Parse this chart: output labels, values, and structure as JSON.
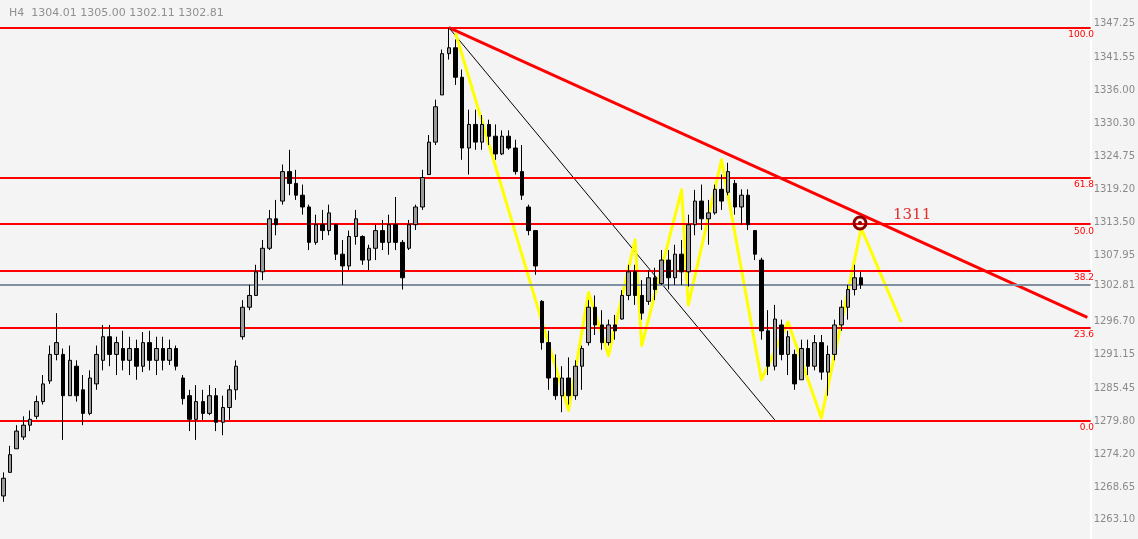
{
  "chart_data": {
    "type": "candlestick",
    "subtitle": "H4  1304.01 1305.00 1302.11 1302.81",
    "categories": [
      null,
      null,
      null,
      null,
      null,
      null,
      null,
      null,
      null,
      null,
      null,
      null,
      null,
      null,
      null,
      null,
      null,
      null,
      null,
      null,
      null,
      null,
      null,
      null,
      null,
      null,
      null,
      null,
      null,
      null,
      null,
      null,
      null,
      null,
      null,
      null,
      null,
      null,
      null,
      null,
      null,
      null,
      null,
      null,
      null,
      null,
      null,
      null,
      null,
      null,
      null,
      null,
      null,
      null,
      null,
      null,
      null,
      null,
      null,
      null,
      null,
      null,
      null,
      null,
      null,
      null,
      null,
      null,
      null,
      null,
      null,
      null,
      null,
      null,
      null,
      null,
      null,
      null,
      null,
      null,
      null,
      null,
      null,
      null,
      null,
      null,
      null,
      null,
      null,
      null,
      null,
      null,
      null,
      null,
      null,
      null,
      null,
      null,
      null,
      null,
      null,
      null,
      null,
      null,
      null,
      null,
      null,
      null,
      null,
      null,
      null,
      null,
      null,
      null,
      null,
      null,
      null,
      null,
      null,
      null,
      null,
      null,
      null,
      null,
      null,
      null,
      null,
      null,
      null,
      null,
      null,
      null,
      null,
      null,
      null,
      null,
      null,
      null,
      null,
      null,
      null,
      null,
      null,
      null,
      null,
      null,
      null,
      null,
      null,
      null,
      null,
      null,
      null,
      null,
      null,
      null,
      null,
      null,
      null,
      null,
      null,
      null,
      null,
      null
    ],
    "tick_labels": "y",
    "ylim": [
      1259.7,
      1351.1
    ],
    "yticks": [
      1347.25,
      1341.55,
      {
        "value": 1336,
        "label": "1336.00"
      },
      {
        "value": 1330.3,
        "label": "1330.30"
      },
      1324.75,
      {
        "value": 1319.2,
        "label": "1319.20"
      },
      {
        "value": 1313.5,
        "label": "1313.50"
      },
      1307.95,
      1302.81,
      {
        "value": 1296.7,
        "label": "1296.70"
      },
      1291.15,
      1285.45,
      {
        "value": 1279.8,
        "label": "1279.80"
      },
      {
        "value": 1274.2,
        "label": "1274.20"
      },
      1268.65,
      {
        "value": 1263.1,
        "label": "1263.10"
      }
    ],
    "grid": false,
    "series": [
      {
        "type": "candlestick",
        "color": "#000000",
        "ohlc": [
          [
            1267,
            1271,
            1266,
            1270
          ],
          [
            1271,
            1275.5,
            1271,
            1274
          ],
          [
            1275,
            1279,
            1275,
            1278
          ],
          [
            1277,
            1280.5,
            1276.5,
            1279
          ],
          [
            1279,
            1281.5,
            1278,
            1280
          ],
          [
            1280.5,
            1284,
            1280,
            1283
          ],
          [
            1283,
            1287.5,
            1282.5,
            1286
          ],
          [
            1286.5,
            1292.5,
            1286,
            1291
          ],
          [
            1291,
            1298,
            1290,
            1293
          ],
          [
            1291,
            1292,
            1276.5,
            1284
          ],
          [
            1284,
            1292.5,
            1284,
            1290
          ],
          [
            1289,
            1290,
            1283,
            1284
          ],
          [
            1285,
            1287.5,
            1279,
            1281
          ],
          [
            1281,
            1288.3,
            1280.7,
            1287
          ],
          [
            1286,
            1292.5,
            1285,
            1291
          ],
          [
            1290,
            1296,
            1288.3,
            1294
          ],
          [
            1294,
            1296,
            1289,
            1291
          ],
          [
            1291,
            1294,
            1287.5,
            1293
          ],
          [
            1292,
            1295,
            1288.3,
            1290
          ],
          [
            1290,
            1294,
            1287.5,
            1292
          ],
          [
            1292,
            1293.5,
            1286.7,
            1289
          ],
          [
            1289,
            1294.8,
            1288,
            1293
          ],
          [
            1293,
            1295,
            1288.3,
            1290
          ],
          [
            1290,
            1294,
            1287.5,
            1292
          ],
          [
            1292,
            1294,
            1288.3,
            1290
          ],
          [
            1290,
            1293.5,
            1289.2,
            1292
          ],
          [
            1292,
            1292.5,
            1288.3,
            1289
          ],
          [
            1287,
            1287.5,
            1282.5,
            1283.5
          ],
          [
            1284,
            1285,
            1278,
            1280
          ],
          [
            1280,
            1285.8,
            1276.5,
            1283
          ],
          [
            1283,
            1285,
            1279.9,
            1281
          ],
          [
            1281,
            1285.8,
            1280.7,
            1284
          ],
          [
            1284,
            1285.3,
            1278,
            1279.5
          ],
          [
            1279.5,
            1284,
            1277.3,
            1282
          ],
          [
            1282,
            1285.8,
            1279.9,
            1285
          ],
          [
            1285,
            1290,
            1283.3,
            1289
          ],
          [
            1294,
            1300.2,
            1293.5,
            1299
          ],
          [
            1299,
            1302.8,
            1298.5,
            1301
          ],
          [
            1301,
            1306.2,
            1301,
            1305
          ],
          [
            1305,
            1310.4,
            1303.6,
            1309
          ],
          [
            1309,
            1315.5,
            1308.7,
            1314
          ],
          [
            1314,
            1317.2,
            1311.2,
            1313
          ],
          [
            1317,
            1323.2,
            1316.4,
            1322
          ],
          [
            1322,
            1325.7,
            1318,
            1320
          ],
          [
            1320,
            1322.3,
            1317.2,
            1318
          ],
          [
            1318,
            1319.8,
            1314.7,
            1316
          ],
          [
            1316,
            1316.4,
            1308.7,
            1310
          ],
          [
            1310,
            1314.7,
            1309.6,
            1313
          ],
          [
            1313,
            1315.5,
            1310.4,
            1312
          ],
          [
            1312,
            1316.4,
            1311.2,
            1315
          ],
          [
            1313,
            1313,
            1307,
            1308
          ],
          [
            1308,
            1310.4,
            1302.8,
            1306
          ],
          [
            1306,
            1312,
            1305.3,
            1311
          ],
          [
            1311,
            1315.5,
            1309.6,
            1314
          ],
          [
            1311,
            1311.2,
            1306.2,
            1307
          ],
          [
            1307,
            1309.6,
            1305.3,
            1309
          ],
          [
            1309,
            1313,
            1307,
            1312
          ],
          [
            1312,
            1313.8,
            1308.7,
            1310
          ],
          [
            1310,
            1314.7,
            1307.9,
            1313
          ],
          [
            1313,
            1317.7,
            1308.7,
            1310
          ],
          [
            1310,
            1310.4,
            1302,
            1304
          ],
          [
            1309,
            1313.8,
            1308.7,
            1313
          ],
          [
            1313,
            1316.4,
            1312.1,
            1316
          ],
          [
            1316,
            1322.3,
            1315.5,
            1321
          ],
          [
            1321.5,
            1328.2,
            1321.5,
            1327
          ],
          [
            1327,
            1334.2,
            1326.5,
            1333
          ],
          [
            1335,
            1342.7,
            1335,
            1342
          ],
          [
            1342,
            1346.4,
            1341,
            1343
          ],
          [
            1343,
            1344.4,
            1336.7,
            1338
          ],
          [
            1338,
            1339.3,
            1324,
            1326
          ],
          [
            1326,
            1332.5,
            1321.5,
            1330
          ],
          [
            1330,
            1332.5,
            1325.7,
            1327
          ],
          [
            1327,
            1331.6,
            1325.7,
            1330
          ],
          [
            1330,
            1330.8,
            1326.5,
            1328
          ],
          [
            1328,
            1330,
            1324,
            1325
          ],
          [
            1325,
            1329,
            1324.8,
            1328
          ],
          [
            1328,
            1329,
            1325.7,
            1326
          ],
          [
            1326,
            1327.4,
            1321.5,
            1322
          ],
          [
            1322,
            1326.5,
            1317.2,
            1318
          ],
          [
            1316,
            1316.4,
            1311.2,
            1312
          ],
          [
            1312,
            1312,
            1304.5,
            1306
          ],
          [
            1300,
            1300.2,
            1291.8,
            1293
          ],
          [
            1293,
            1295,
            1285,
            1287
          ],
          [
            1287,
            1291,
            1283.3,
            1284
          ],
          [
            1284,
            1289,
            1281.2,
            1287
          ],
          [
            1287,
            1290.5,
            1282.5,
            1284
          ],
          [
            1284,
            1290,
            1283.3,
            1289
          ],
          [
            1289,
            1292.5,
            1285,
            1292
          ],
          [
            1293,
            1300.2,
            1292.5,
            1299
          ],
          [
            1299,
            1301,
            1294.3,
            1296
          ],
          [
            1296,
            1298.5,
            1291.8,
            1293
          ],
          [
            1293,
            1296.9,
            1292.5,
            1296
          ],
          [
            1296,
            1297.7,
            1293.5,
            1295
          ],
          [
            1297,
            1301.9,
            1296.9,
            1301
          ],
          [
            1301,
            1306.2,
            1300.2,
            1305
          ],
          [
            1305,
            1306.2,
            1299.4,
            1301
          ],
          [
            1301,
            1303.6,
            1296.9,
            1298
          ],
          [
            1300,
            1305.3,
            1299.4,
            1304
          ],
          [
            1304,
            1305.7,
            1300.2,
            1302
          ],
          [
            1303,
            1308.7,
            1302.8,
            1307
          ],
          [
            1307,
            1308.7,
            1302,
            1304
          ],
          [
            1304,
            1309.6,
            1302.8,
            1308
          ],
          [
            1308,
            1310.4,
            1302.8,
            1305
          ],
          [
            1305,
            1314.7,
            1302.5,
            1313
          ],
          [
            1313,
            1318.9,
            1311.2,
            1317
          ],
          [
            1317,
            1319.8,
            1312.1,
            1314
          ],
          [
            1314,
            1317.2,
            1309.6,
            1315
          ],
          [
            1315,
            1319.8,
            1314.7,
            1319
          ],
          [
            1319,
            1321.5,
            1315.5,
            1317
          ],
          [
            1318.5,
            1323.5,
            1318,
            1322
          ],
          [
            1320,
            1320.6,
            1314.7,
            1316
          ],
          [
            1316,
            1319,
            1313,
            1318
          ],
          [
            1318,
            1319,
            1312.1,
            1313
          ],
          [
            1312,
            1312,
            1307,
            1308
          ],
          [
            1307,
            1307.4,
            1293.5,
            1295
          ],
          [
            1295,
            1298.5,
            1287.5,
            1289
          ],
          [
            1289,
            1299.4,
            1288.3,
            1297
          ],
          [
            1296,
            1296.9,
            1290,
            1291
          ],
          [
            1291,
            1295,
            1287.5,
            1294
          ],
          [
            1291,
            1291.8,
            1285,
            1286
          ],
          [
            1286.7,
            1293.5,
            1286.7,
            1292
          ],
          [
            1292,
            1293.5,
            1287.5,
            1289
          ],
          [
            1289,
            1294.3,
            1288.3,
            1293
          ],
          [
            1293,
            1294.3,
            1286.7,
            1288
          ],
          [
            1288,
            1292.5,
            1284,
            1291
          ],
          [
            1291,
            1296.9,
            1290,
            1296
          ],
          [
            1296,
            1300.2,
            1295,
            1299
          ],
          [
            1299,
            1302.8,
            1296.9,
            1302
          ],
          [
            1302,
            1306.2,
            1301,
            1304
          ],
          [
            1304.01,
            1305,
            1302.11,
            1302.81
          ],
          null,
          null,
          null,
          null,
          null,
          null,
          null,
          null,
          null,
          null,
          null,
          null,
          null,
          null,
          null,
          null,
          null,
          null,
          null,
          null,
          null,
          null,
          null,
          null,
          null,
          null,
          null,
          null,
          null,
          null,
          null,
          null,
          null,
          null
        ]
      },
      {
        "type": "line",
        "color": "#ff0000",
        "values": [
          null,
          null,
          null,
          null,
          null,
          null,
          null,
          null,
          null,
          null,
          null,
          null,
          null,
          null,
          null,
          null,
          null,
          null,
          null,
          null,
          null,
          null,
          null,
          null,
          null,
          null,
          null,
          null,
          null,
          null,
          null,
          null,
          null,
          null,
          null,
          null,
          null,
          null,
          null,
          null,
          null,
          null,
          null,
          null,
          null,
          null,
          null,
          null,
          null,
          null,
          null,
          null,
          null,
          null,
          null,
          null,
          null,
          null,
          null,
          null,
          null,
          null,
          null,
          null,
          null,
          null,
          null,
          1346.4,
          null,
          null,
          null,
          null,
          null,
          null,
          null,
          null,
          null,
          null,
          null,
          null,
          null,
          null,
          null,
          null,
          null,
          null,
          null,
          null,
          null,
          null,
          null,
          null,
          null,
          null,
          null,
          null,
          null,
          null,
          null,
          null,
          null,
          null,
          null,
          null,
          null,
          null,
          null,
          null,
          null,
          null,
          null,
          null,
          null,
          null,
          null,
          null,
          null,
          null,
          null,
          null,
          null,
          null,
          null,
          null,
          null,
          null,
          null,
          null,
          null,
          null,
          null,
          null,
          null,
          null,
          null,
          null,
          null,
          null,
          null,
          null,
          null,
          null,
          null,
          null,
          null,
          null,
          null,
          null,
          null,
          null,
          null,
          null,
          null,
          null,
          null,
          null,
          null,
          null,
          null,
          null,
          null,
          null,
          null,
          1297.3
        ]
      },
      {
        "type": "line",
        "color": "#000000",
        "values": [
          null,
          null,
          null,
          null,
          null,
          null,
          null,
          null,
          null,
          null,
          null,
          null,
          null,
          null,
          null,
          null,
          null,
          null,
          null,
          null,
          null,
          null,
          null,
          null,
          null,
          null,
          null,
          null,
          null,
          null,
          null,
          null,
          null,
          null,
          null,
          null,
          null,
          null,
          null,
          null,
          null,
          null,
          null,
          null,
          null,
          null,
          null,
          null,
          null,
          null,
          null,
          null,
          null,
          null,
          null,
          null,
          null,
          null,
          null,
          null,
          null,
          null,
          null,
          null,
          null,
          null,
          null,
          1346.4,
          null,
          null,
          null,
          null,
          null,
          null,
          null,
          null,
          null,
          null,
          null,
          null,
          null,
          null,
          null,
          null,
          null,
          null,
          null,
          null,
          null,
          null,
          null,
          null,
          null,
          null,
          null,
          null,
          null,
          null,
          null,
          null,
          null,
          null,
          null,
          null,
          null,
          null,
          null,
          null,
          null,
          null,
          null,
          null,
          null,
          null,
          null,
          null,
          1279.9,
          null,
          null,
          null,
          null,
          null,
          null,
          null,
          null,
          null,
          null,
          null,
          null,
          null,
          null,
          null,
          null,
          null,
          null,
          null,
          null,
          null,
          null,
          null,
          null,
          null,
          null,
          null,
          null,
          null,
          null,
          null,
          null,
          null,
          null,
          null,
          null,
          null,
          null,
          null,
          null,
          null,
          null,
          null,
          null,
          null,
          null,
          null
        ]
      },
      {
        "type": "line",
        "color": "#ffff00",
        "values": [
          null,
          null,
          null,
          null,
          null,
          null,
          null,
          null,
          null,
          null,
          null,
          null,
          null,
          null,
          null,
          null,
          null,
          null,
          null,
          null,
          null,
          null,
          null,
          null,
          null,
          null,
          null,
          null,
          null,
          null,
          null,
          null,
          null,
          null,
          null,
          null,
          null,
          null,
          null,
          null,
          null,
          null,
          null,
          null,
          null,
          null,
          null,
          null,
          null,
          null,
          null,
          null,
          null,
          null,
          null,
          null,
          null,
          null,
          null,
          null,
          null,
          null,
          null,
          null,
          null,
          null,
          null,
          null,
          1345.5,
          null,
          null,
          null,
          null,
          null,
          null,
          null,
          null,
          null,
          null,
          null,
          null,
          null,
          null,
          null,
          null,
          1281.5,
          null,
          null,
          1301.5,
          null,
          null,
          1290.8,
          null,
          null,
          null,
          1310.4,
          1292.5,
          null,
          null,
          null,
          null,
          null,
          1318.9,
          1299.4,
          null,
          null,
          null,
          null,
          1324,
          null,
          null,
          null,
          null,
          null,
          1286.7,
          null,
          null,
          null,
          1296.5,
          null,
          null,
          null,
          null,
          1280.2,
          null,
          null,
          null,
          null,
          null,
          1312.4,
          null,
          null,
          null,
          null,
          null,
          1296.5,
          null,
          null,
          null,
          null,
          null,
          null,
          null,
          null,
          null,
          null,
          null,
          null,
          null,
          null,
          null,
          null,
          null,
          null,
          null,
          null,
          null,
          null,
          null,
          null,
          null,
          null,
          null,
          null
        ]
      }
    ],
    "ref_lines": [
      {
        "axis": "y",
        "value": 1346.4,
        "color": "#ff0000"
      },
      {
        "axis": "y",
        "value": 1320.96,
        "color": "#ff0000"
      },
      {
        "axis": "y",
        "value": 1313.1,
        "color": "#ff0000"
      },
      {
        "axis": "y",
        "value": 1305.24,
        "color": "#ff0000"
      },
      {
        "axis": "y",
        "value": 1295.52,
        "color": "#ff0000"
      },
      {
        "axis": "y",
        "value": 1279.8,
        "color": "#ff0000"
      },
      {
        "axis": "y",
        "value": 1302.81,
        "color": "#8090a0"
      }
    ],
    "annotations": [
      "1311",
      {
        "text": "100.0",
        "y": 1346.4
      },
      {
        "text": "61.8",
        "y": 1320.96
      },
      {
        "text": "50.0",
        "y": 1313.1
      },
      {
        "text": "38.2",
        "y": 1305.24
      },
      {
        "text": "23.6",
        "y": 1295.52
      },
      {
        "text": "0.0",
        "y": 1279.8
      }
    ]
  }
}
